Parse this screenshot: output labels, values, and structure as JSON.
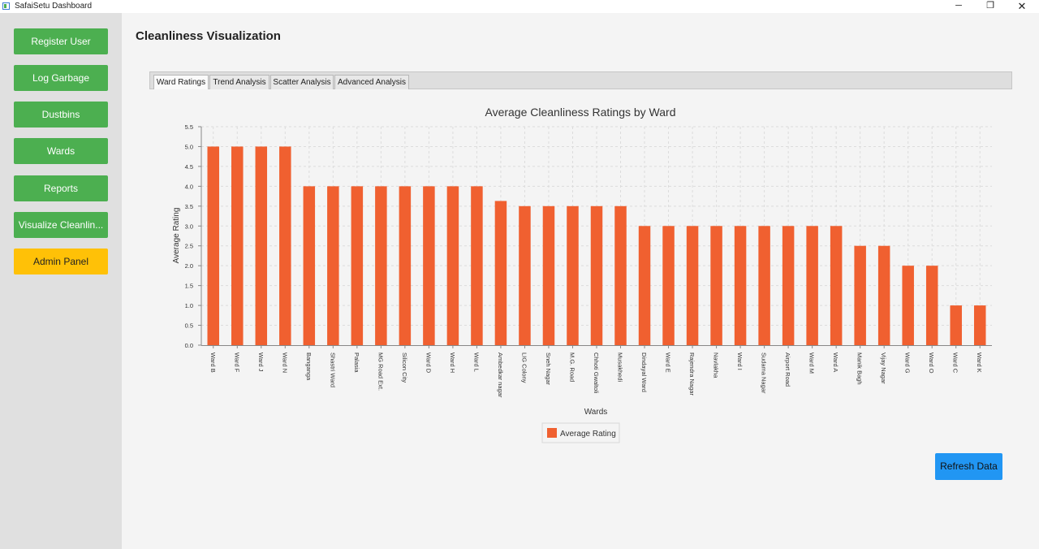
{
  "window": {
    "title": "SafaiSetu Dashboard",
    "controls": {
      "minimize": "─",
      "maximize": "❐",
      "close": "✕"
    }
  },
  "sidebar": {
    "items": [
      {
        "label": "Register User"
      },
      {
        "label": "Log Garbage"
      },
      {
        "label": "Dustbins"
      },
      {
        "label": "Wards"
      },
      {
        "label": "Reports"
      },
      {
        "label": "Visualize Cleanlin..."
      },
      {
        "label": "Admin Panel"
      }
    ]
  },
  "page": {
    "title": "Cleanliness Visualization"
  },
  "tabs": [
    {
      "label": "Ward Ratings",
      "active": true
    },
    {
      "label": "Trend Analysis",
      "active": false
    },
    {
      "label": "Scatter Analysis",
      "active": false
    },
    {
      "label": "Advanced Analysis",
      "active": false
    }
  ],
  "refresh_label": "Refresh Data",
  "colors": {
    "primary_button": "#4caf50",
    "admin_button": "#ffc107",
    "refresh_button": "#2196f3",
    "bar": "#f06030"
  },
  "chart_data": {
    "type": "bar",
    "title": "Average Cleanliness Ratings by Ward",
    "xlabel": "Wards",
    "ylabel": "Average Rating",
    "ylim": [
      0,
      5.5
    ],
    "yticks": [
      "0.0",
      "0.5",
      "1.0",
      "1.5",
      "2.0",
      "2.5",
      "3.0",
      "3.5",
      "4.0",
      "4.5",
      "5.0",
      "5.5"
    ],
    "grid": true,
    "legend_position": "bottom",
    "categories": [
      "Ward B",
      "Ward F",
      "Ward J",
      "Ward N",
      "Banganga",
      "Shastri Ward",
      "Palasia",
      "MG Road Ext.",
      "Silicon City",
      "Ward D",
      "Ward H",
      "Ward L",
      "Ambedkar nagar",
      "LIG Colony",
      "Sneh Nagar",
      "M.G. Road",
      "Chhoti Gwaltoli",
      "Musakhedi",
      "Dindayal Ward",
      "Ward E",
      "Rajendra Nagar",
      "Navlakha",
      "Ward I",
      "Sudama Nagar",
      "Airport Road",
      "Ward M",
      "Ward A",
      "Manik Bagh",
      "Vijay Nagar",
      "Ward G",
      "Ward O",
      "Ward C",
      "Ward K"
    ],
    "series": [
      {
        "name": "Average Rating",
        "values": [
          5.0,
          5.0,
          5.0,
          5.0,
          4.0,
          4.0,
          4.0,
          4.0,
          4.0,
          4.0,
          4.0,
          4.0,
          3.63,
          3.5,
          3.5,
          3.5,
          3.5,
          3.5,
          3.0,
          3.0,
          3.0,
          3.0,
          3.0,
          3.0,
          3.0,
          3.0,
          3.0,
          2.5,
          2.5,
          2.0,
          2.0,
          1.0,
          1.0
        ]
      }
    ]
  }
}
